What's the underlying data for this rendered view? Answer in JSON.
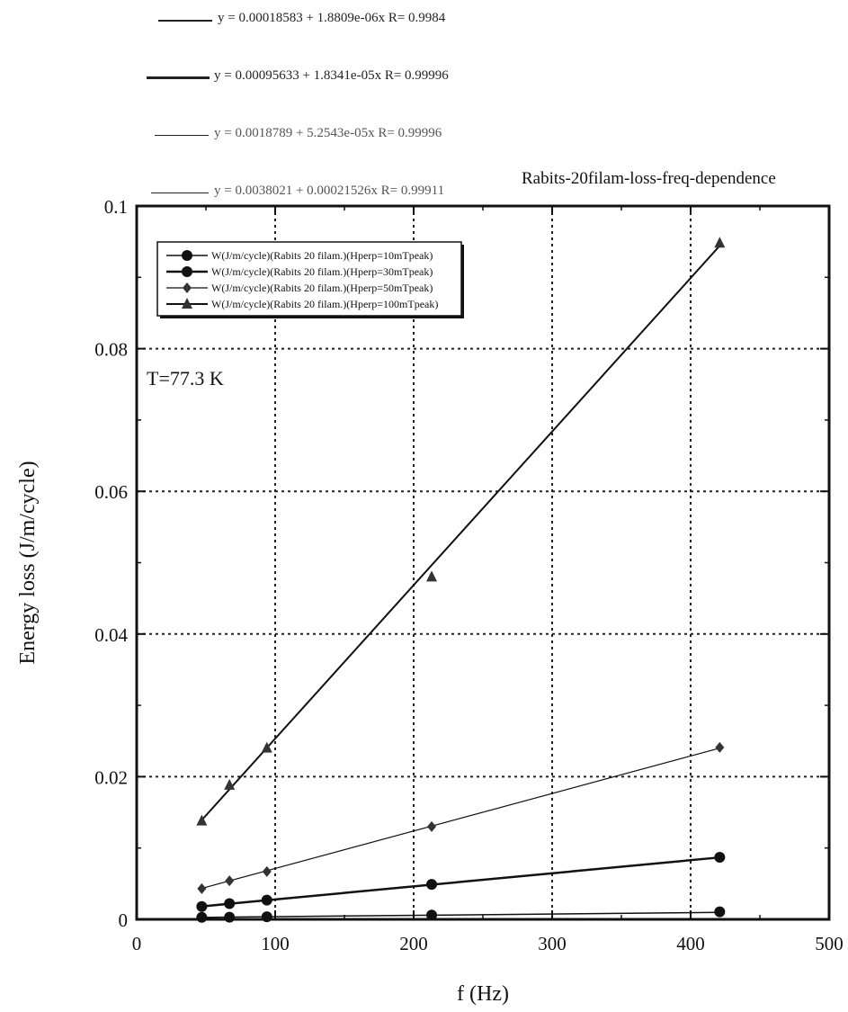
{
  "fit_equations": [
    "y = 0.00018583 + 1.8809e-06x   R= 0.9984",
    "y = 0.00095633 + 1.8341e-05x   R= 0.99996",
    "y = 0.0018789 + 5.2543e-05x   R= 0.99996",
    "y = 0.0038021 + 0.00021526x   R= 0.99911"
  ],
  "chart_data": {
    "type": "line",
    "title": "Rabits-20filam-loss-freq-dependence",
    "xlabel": "f (Hz)",
    "ylabel": "Energy loss (J/m/cycle)",
    "xlim": [
      0,
      500
    ],
    "ylim": [
      0,
      0.1
    ],
    "x_ticks": [
      "0",
      "100",
      "200",
      "300",
      "400",
      "500"
    ],
    "y_ticks": [
      "0",
      "0.02",
      "0.04",
      "0.06",
      "0.08",
      "0.1"
    ],
    "grid": true,
    "legend_position": "top-left",
    "annotation": "T=77.3 K",
    "series": [
      {
        "name": "W(J/m/cycle)(Rabits 20 filam.)(Hperp=10mTpeak)",
        "marker": "circle",
        "x": [
          47,
          67,
          94,
          213,
          421
        ],
        "y": [
          0.00028,
          0.0003,
          0.00036,
          0.0006,
          0.00106
        ],
        "fit": {
          "intercept": 0.00018583,
          "slope": 1.8809e-06
        }
      },
      {
        "name": "W(J/m/cycle)(Rabits 20 filam.)(Hperp=30mTpeak)",
        "marker": "circle",
        "x": [
          47,
          67,
          94,
          213,
          421
        ],
        "y": [
          0.0018,
          0.0022,
          0.0027,
          0.0049,
          0.0087
        ],
        "fit": {
          "intercept": 0.00095633,
          "slope": 1.8341e-05
        }
      },
      {
        "name": "W(J/m/cycle)(Rabits 20 filam.)(Hperp=50mTpeak)",
        "marker": "diamond",
        "x": [
          47,
          67,
          94,
          213,
          421
        ],
        "y": [
          0.0043,
          0.0054,
          0.0067,
          0.013,
          0.0241
        ],
        "fit": {
          "intercept": 0.0018789,
          "slope": 5.2543e-05
        }
      },
      {
        "name": "W(J/m/cycle)(Rabits 20 filam.)(Hperp=100mTpeak)",
        "marker": "triangle",
        "x": [
          47,
          67,
          94,
          213,
          421
        ],
        "y": [
          0.0138,
          0.0188,
          0.024,
          0.048,
          0.0948
        ],
        "fit": {
          "intercept": 0.0038021,
          "slope": 0.00021526
        }
      }
    ]
  }
}
